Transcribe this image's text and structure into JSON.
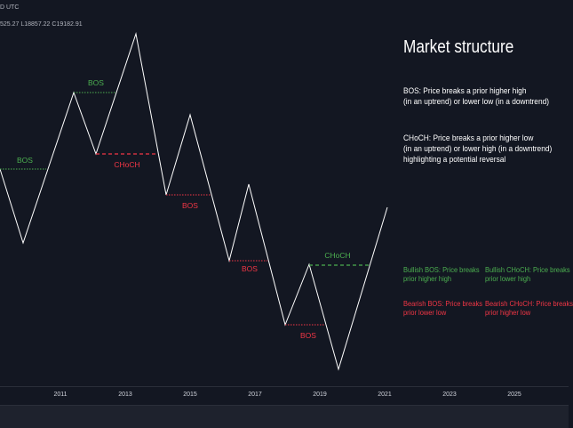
{
  "header": {
    "topline": "D UTC",
    "ohlc": "525.27  L18857.22  C19182.91"
  },
  "panel": {
    "title": "Market structure",
    "bos_def": [
      "BOS: Price breaks a prior higher high",
      "(in an uptrend) or lower low (in a downtrend)"
    ],
    "choch_def": [
      "CHoCH: Price breaks a prior higher low",
      "(in an uptrend) or lower high (in a downtrend)",
      "highlighting a potential reversal"
    ],
    "legend": {
      "bullish_bos": [
        "Bullish BOS: Price breaks",
        "prior higher high"
      ],
      "bullish_choch": [
        "Bullish CHoCH: Price breaks",
        "prior lower high"
      ],
      "bearish_bos": [
        "Bearish BOS: Price breaks",
        "prior lower low"
      ],
      "bearish_choch": [
        "Bearish CHoCH: Price breaks",
        "prior higher low"
      ]
    }
  },
  "chart_data": {
    "type": "line",
    "x_ticks": [
      "2011",
      "2013",
      "2015",
      "2017",
      "2019",
      "2021",
      "2023",
      "2025"
    ],
    "annotations": [
      {
        "label": "BOS",
        "kind": "bullish"
      },
      {
        "label": "BOS",
        "kind": "bullish"
      },
      {
        "label": "CHoCH",
        "kind": "bearish"
      },
      {
        "label": "BOS",
        "kind": "bearish"
      },
      {
        "label": "BOS",
        "kind": "bearish"
      },
      {
        "label": "BOS",
        "kind": "bearish"
      },
      {
        "label": "CHoCH",
        "kind": "bullish"
      }
    ]
  },
  "colors": {
    "background": "#131722",
    "line": "#ffffff",
    "bullish": "#4caf50",
    "bearish": "#f23645"
  }
}
